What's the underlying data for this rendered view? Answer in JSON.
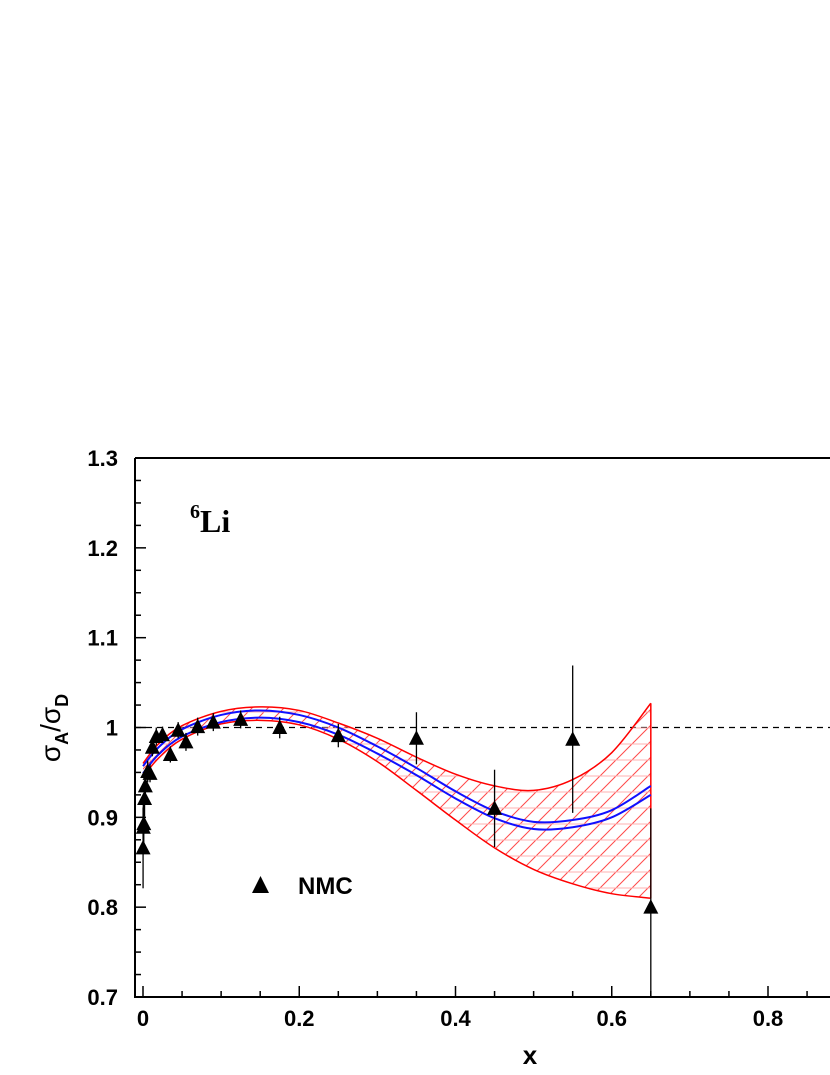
{
  "chart_data": {
    "type": "scatter",
    "title": "",
    "annotation": {
      "mass_number": "6",
      "element": "Li"
    },
    "xlabel": "x",
    "ylabel": {
      "num": "σ",
      "num_sub": "A",
      "den": "σ",
      "den_sub": "D"
    },
    "xlim": [
      0,
      0.88
    ],
    "ylim": [
      0.7,
      1.3
    ],
    "x_ticks": [
      0,
      0.2,
      0.4,
      0.6,
      0.8
    ],
    "x_tick_labels": [
      "0",
      "0.2",
      "0.4",
      "0.6",
      "0.8"
    ],
    "y_ticks": [
      0.7,
      0.8,
      0.9,
      1.0,
      1.1,
      1.2,
      1.3
    ],
    "y_tick_labels": [
      "0.7",
      "0.8",
      "0.9",
      "1",
      "1.1",
      "1.2",
      "1.3"
    ],
    "reference_line": {
      "y": 1.0,
      "style": "dashed"
    },
    "legend": [
      {
        "marker": "triangle",
        "label": "NMC"
      }
    ],
    "colors": {
      "band": "#ff0000",
      "band_hatch": "#ff6666",
      "fit": "#0000ff",
      "data": "#000000"
    },
    "series": [
      {
        "name": "NMC",
        "kind": "points_with_errors",
        "points": [
          {
            "x": 0.0001,
            "y": 0.866,
            "err": 0.045
          },
          {
            "x": 0.0004,
            "y": 0.889,
            "err": 0.03
          },
          {
            "x": 0.001,
            "y": 0.893,
            "err": 0.025
          },
          {
            "x": 0.002,
            "y": 0.921,
            "err": 0.02
          },
          {
            "x": 0.003,
            "y": 0.935,
            "err": 0.018
          },
          {
            "x": 0.006,
            "y": 0.951,
            "err": 0.012
          },
          {
            "x": 0.009,
            "y": 0.949,
            "err": 0.01
          },
          {
            "x": 0.012,
            "y": 0.978,
            "err": 0.01
          },
          {
            "x": 0.017,
            "y": 0.99,
            "err": 0.01
          },
          {
            "x": 0.025,
            "y": 0.992,
            "err": 0.009
          },
          {
            "x": 0.035,
            "y": 0.97,
            "err": 0.009
          },
          {
            "x": 0.045,
            "y": 0.997,
            "err": 0.009
          },
          {
            "x": 0.055,
            "y": 0.984,
            "err": 0.01
          },
          {
            "x": 0.07,
            "y": 1.001,
            "err": 0.01
          },
          {
            "x": 0.09,
            "y": 1.006,
            "err": 0.01
          },
          {
            "x": 0.125,
            "y": 1.009,
            "err": 0.01
          },
          {
            "x": 0.175,
            "y": 1.0,
            "err": 0.012
          },
          {
            "x": 0.25,
            "y": 0.991,
            "err": 0.013
          },
          {
            "x": 0.35,
            "y": 0.988,
            "err": 0.029
          },
          {
            "x": 0.45,
            "y": 0.91,
            "err": 0.043
          },
          {
            "x": 0.55,
            "y": 0.987,
            "err": 0.082
          },
          {
            "x": 0.65,
            "y": 0.8,
            "err": 0.11
          }
        ]
      },
      {
        "name": "uncertainty band (outer)",
        "kind": "band",
        "x": [
          0.0,
          0.02,
          0.05,
          0.1,
          0.15,
          0.2,
          0.25,
          0.3,
          0.35,
          0.4,
          0.45,
          0.5,
          0.55,
          0.6,
          0.65
        ],
        "upper": [
          0.96,
          0.982,
          1.002,
          1.018,
          1.023,
          1.019,
          1.005,
          0.988,
          0.967,
          0.948,
          0.935,
          0.93,
          0.942,
          0.972,
          1.027
        ],
        "lower": [
          0.945,
          0.966,
          0.987,
          1.004,
          1.008,
          1.003,
          0.987,
          0.962,
          0.93,
          0.897,
          0.866,
          0.842,
          0.826,
          0.815,
          0.81
        ]
      },
      {
        "name": "fit band (inner)",
        "kind": "band",
        "x": [
          0.0,
          0.02,
          0.05,
          0.1,
          0.15,
          0.2,
          0.25,
          0.3,
          0.35,
          0.4,
          0.45,
          0.5,
          0.55,
          0.6,
          0.65
        ],
        "upper": [
          0.957,
          0.978,
          0.998,
          1.014,
          1.019,
          1.014,
          1.0,
          0.979,
          0.955,
          0.929,
          0.907,
          0.895,
          0.897,
          0.908,
          0.935
        ],
        "lower": [
          0.949,
          0.97,
          0.99,
          1.006,
          1.011,
          1.006,
          0.992,
          0.971,
          0.947,
          0.921,
          0.899,
          0.887,
          0.889,
          0.9,
          0.925
        ]
      }
    ]
  }
}
